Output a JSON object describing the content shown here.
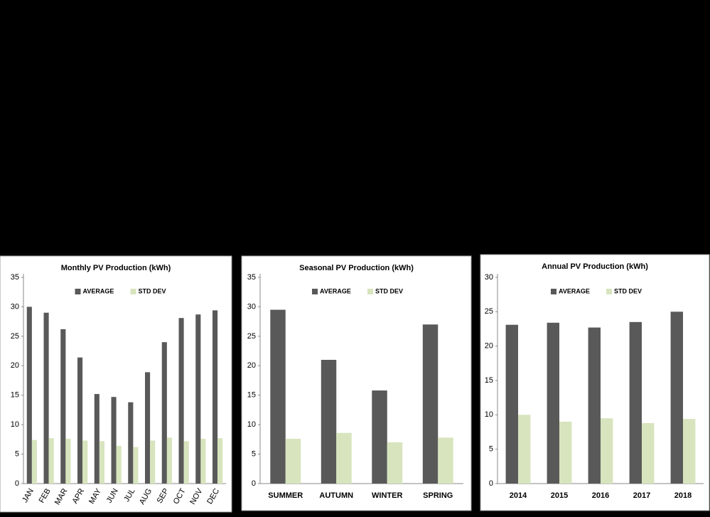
{
  "chart_data": [
    {
      "type": "bar",
      "title": "Monthly PV Production (kWh)",
      "categories": [
        "JAN",
        "FEB",
        "MAR",
        "APR",
        "MAY",
        "JUN",
        "JUL",
        "AUG",
        "SEP",
        "OCT",
        "NOV",
        "DEC"
      ],
      "series": [
        {
          "name": "AVERAGE",
          "color": "#595959",
          "values": [
            30,
            29,
            26.2,
            21.4,
            15.2,
            14.7,
            13.8,
            18.9,
            24,
            28.1,
            28.7,
            29.4
          ]
        },
        {
          "name": "STD DEV",
          "color": "#d7e4bd",
          "values": [
            7.4,
            7.7,
            7.6,
            7.3,
            7.2,
            6.4,
            6.2,
            7.3,
            7.8,
            7.2,
            7.6,
            7.7
          ]
        }
      ],
      "ylim": [
        0,
        35
      ],
      "yticks": [
        0,
        5,
        10,
        15,
        20,
        25,
        30,
        35
      ]
    },
    {
      "type": "bar",
      "title": "Seasonal PV Production (kWh)",
      "categories": [
        "SUMMER",
        "AUTUMN",
        "WINTER",
        "SPRING"
      ],
      "series": [
        {
          "name": "AVERAGE",
          "color": "#595959",
          "values": [
            29.5,
            21,
            15.8,
            27
          ]
        },
        {
          "name": "STD DEV",
          "color": "#d7e4bd",
          "values": [
            7.6,
            8.6,
            7,
            7.8
          ]
        }
      ],
      "ylim": [
        0,
        35
      ],
      "yticks": [
        0,
        5,
        10,
        15,
        20,
        25,
        30,
        35
      ]
    },
    {
      "type": "bar",
      "title": "Annual PV Production (kWh)",
      "categories": [
        "2014",
        "2015",
        "2016",
        "2017",
        "2018"
      ],
      "series": [
        {
          "name": "AVERAGE",
          "color": "#595959",
          "values": [
            23.1,
            23.4,
            22.7,
            23.5,
            25
          ]
        },
        {
          "name": "STD DEV",
          "color": "#d7e4bd",
          "values": [
            10,
            9,
            9.5,
            8.8,
            9.4
          ]
        }
      ],
      "ylim": [
        0,
        30
      ],
      "yticks": [
        0,
        5,
        10,
        15,
        20,
        25,
        30
      ]
    }
  ]
}
